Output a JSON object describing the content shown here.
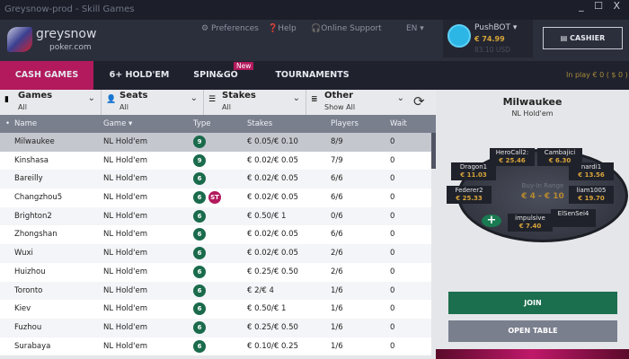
{
  "window": {
    "title": "Greysnow-prod - Skill Games",
    "controls": "_ ☐ X"
  },
  "header": {
    "logo_line1": "greysnow",
    "logo_line2": "poker.com",
    "preferences": "Preferences",
    "help": "Help",
    "support": "Online Support",
    "language": "EN ▾",
    "user": "PushBOT ▾",
    "balance_eur": "€ 74.99",
    "balance_usd": "83.10 USD",
    "cashier": "CASHIER"
  },
  "nav": {
    "tabs": [
      {
        "label": "CASH GAMES",
        "active": true
      },
      {
        "label": "6+ HOLD'EM"
      },
      {
        "label": "SPIN&GO",
        "badge": "New"
      },
      {
        "label": "TOURNAMENTS"
      }
    ],
    "in_play": "In play € 0  ( $ 0 )",
    "accent": "#b3195d"
  },
  "filters": [
    {
      "label": "Games",
      "value": "All"
    },
    {
      "label": "Seats",
      "value": "All"
    },
    {
      "label": "Stakes",
      "value": "All"
    },
    {
      "label": "Other",
      "value": "Show All"
    }
  ],
  "table": {
    "columns": [
      "Name",
      "Game ▾",
      "Type",
      "Stakes",
      "Players",
      "Wait"
    ],
    "rows": [
      [
        "Milwaukee",
        "NL Hold'em",
        "9",
        "",
        "€ 0.05/€ 0.10",
        "8/9",
        "0"
      ],
      [
        "Kinshasa",
        "NL Hold'em",
        "9",
        "",
        "€ 0.02/€ 0.05",
        "7/9",
        "0"
      ],
      [
        "Bareilly",
        "NL Hold'em",
        "6",
        "",
        "€ 0.02/€ 0.05",
        "6/6",
        "0"
      ],
      [
        "Changzhou5",
        "NL Hold'em",
        "6",
        "ST",
        "€ 0.02/€ 0.05",
        "6/6",
        "0"
      ],
      [
        "Brighton2",
        "NL Hold'em",
        "6",
        "",
        "€ 0.50/€ 1",
        "0/6",
        "0"
      ],
      [
        "Zhongshan",
        "NL Hold'em",
        "6",
        "",
        "€ 0.02/€ 0.05",
        "6/6",
        "0"
      ],
      [
        "Wuxi",
        "NL Hold'em",
        "6",
        "",
        "€ 0.02/€ 0.05",
        "2/6",
        "0"
      ],
      [
        "Huizhou",
        "NL Hold'em",
        "6",
        "",
        "€ 0.25/€ 0.50",
        "2/6",
        "0"
      ],
      [
        "Toronto",
        "NL Hold'em",
        "6",
        "",
        "€ 2/€ 4",
        "1/6",
        "0"
      ],
      [
        "Kiev",
        "NL Hold'em",
        "6",
        "",
        "€ 0.50/€ 1",
        "1/6",
        "0"
      ],
      [
        "Fuzhou",
        "NL Hold'em",
        "6",
        "",
        "€ 0.25/€ 0.50",
        "1/6",
        "0"
      ],
      [
        "Surabaya",
        "NL Hold'em",
        "6",
        "",
        "€ 0.10/€ 0.25",
        "1/6",
        "0"
      ]
    ]
  },
  "preview": {
    "name": "Milwaukee",
    "game": "NL Hold'em",
    "buyin_label": "Buy-In Range",
    "buyin": "€ 4 - € 10",
    "seats": [
      {
        "name": "HeroCall2:",
        "stack": "€ 25.46"
      },
      {
        "name": "Cambajici",
        "stack": "€ 6.30"
      },
      {
        "name": "Dragon1",
        "stack": "€ 11.03"
      },
      {
        "name": "nardi1",
        "stack": "€ 13.56"
      },
      {
        "name": "Federer2",
        "stack": "€ 25.33"
      },
      {
        "name": "liam1005",
        "stack": "€ 19.70"
      },
      {
        "name": "impulsive",
        "stack": "€ 7.40"
      },
      {
        "name": "ElSenSei4",
        "stack": ""
      }
    ],
    "join": "JOIN",
    "open": "OPEN TABLE"
  }
}
